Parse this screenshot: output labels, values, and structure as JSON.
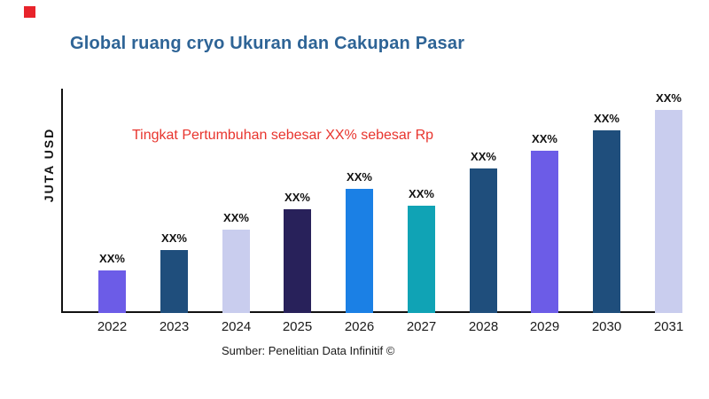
{
  "brand_mark": {
    "color": "#E8232B"
  },
  "header": {
    "title": "Global ruang cryo Ukuran dan Cakupan Pasar",
    "title_color": "#2E6496"
  },
  "annotation": {
    "text": "Tingkat Pertumbuhan sebesar XX% sebesar Rp",
    "color": "#E8352E"
  },
  "axis": {
    "ylabel": "JUTA USD",
    "line_color": "#111111"
  },
  "footer": {
    "source": "Sumber: Penelitian Data Infinitif ©"
  },
  "chart_data": {
    "type": "bar",
    "title": "Global ruang cryo Ukuran dan Cakupan Pasar",
    "xlabel": "",
    "ylabel": "JUTA USD",
    "categories": [
      "2022",
      "2023",
      "2024",
      "2025",
      "2026",
      "2027",
      "2028",
      "2029",
      "2030",
      "2031"
    ],
    "values": [
      21,
      31,
      41,
      51,
      61,
      53,
      71,
      80,
      90,
      100
    ],
    "values_note": "Relative bar heights (0-100 scale); actual figures are masked as XX% in the chart",
    "bar_labels": [
      "XX%",
      "XX%",
      "XX%",
      "XX%",
      "XX%",
      "XX%",
      "XX%",
      "XX%",
      "XX%",
      "XX%"
    ],
    "bar_colors": [
      "#6C5CE7",
      "#1F4E7C",
      "#C9CDEE",
      "#28215A",
      "#1B80E5",
      "#10A3B5",
      "#1F4E7C",
      "#6C5CE7",
      "#1F4E7C",
      "#C9CDEE"
    ],
    "annotation": "Tingkat Pertumbuhan sebesar XX% sebesar Rp",
    "source": "Sumber: Penelitian Data Infinitif ©",
    "ylim": [
      0,
      110
    ],
    "grid": false,
    "legend": false
  }
}
